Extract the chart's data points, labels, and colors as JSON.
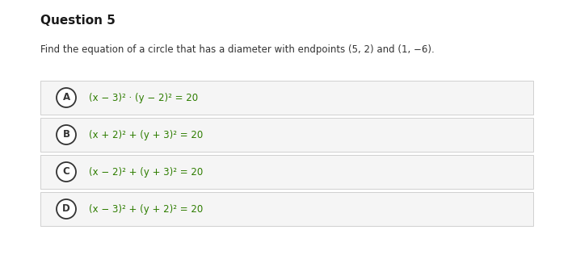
{
  "title": "Question 5",
  "question": "Find the equation of a circle that has a diameter with endpoints (5, 2) and (1, −6).",
  "options": [
    {
      "label": "A",
      "text": "(x − 3)² · (y − 2)² = 20"
    },
    {
      "label": "B",
      "text": "(x + 2)² + (y + 3)² = 20"
    },
    {
      "label": "C",
      "text": "(x − 2)² + (y + 3)² = 20"
    },
    {
      "label": "D",
      "text": "(x − 3)² + (y + 2)² = 20"
    }
  ],
  "bg_color": "#ffffff",
  "option_bg_color": "#f5f5f5",
  "option_border_color": "#d0d0d0",
  "title_color": "#1a1a1a",
  "question_color": "#333333",
  "answer_color": "#2e7d00",
  "circle_edge_color": "#333333",
  "circle_fill_color": "#ffffff",
  "title_fontsize": 11,
  "question_fontsize": 8.5,
  "answer_fontsize": 8.5,
  "label_fontsize": 8.5
}
